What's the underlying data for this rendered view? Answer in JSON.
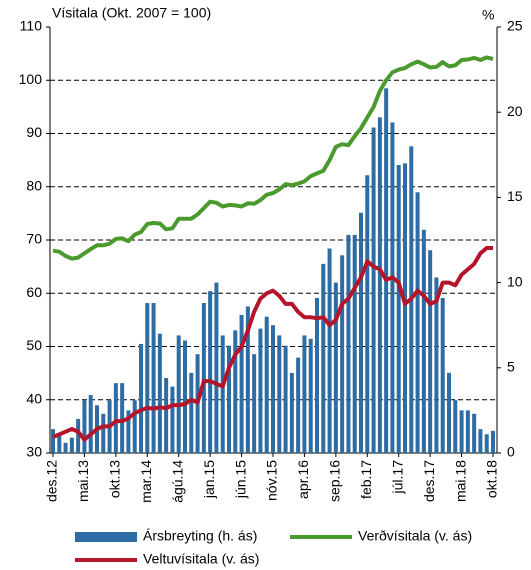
{
  "chart_data": {
    "type": "combo",
    "title": "Vísitala (Okt. 2007 = 100)",
    "y2_title": "%",
    "categories": [
      "des.12",
      null,
      null,
      null,
      null,
      "mai.13",
      null,
      null,
      null,
      null,
      "okt.13",
      null,
      null,
      null,
      null,
      "mar.14",
      null,
      null,
      null,
      null,
      "ágú.14",
      null,
      null,
      null,
      null,
      "jan.15",
      null,
      null,
      null,
      null,
      "jún.15",
      null,
      null,
      null,
      null,
      "nóv.15",
      null,
      null,
      null,
      null,
      "apr.16",
      null,
      null,
      null,
      null,
      "sep.16",
      null,
      null,
      null,
      null,
      "feb.17",
      null,
      null,
      null,
      null,
      "júl.17",
      null,
      null,
      null,
      null,
      "des.17",
      null,
      null,
      null,
      null,
      "mai.18",
      null,
      null,
      null,
      null,
      "okt.18"
    ],
    "ylim": [
      30,
      110
    ],
    "yticks": [
      30,
      40,
      50,
      60,
      70,
      80,
      90,
      100,
      110
    ],
    "y2lim": [
      0,
      25
    ],
    "y2ticks": [
      0,
      5,
      10,
      15,
      20,
      25
    ],
    "grid": true,
    "series": [
      {
        "name": "Ársbreyting (h. ás)",
        "type": "bar",
        "axis": "y2",
        "color": "#2e6ca4",
        "values": [
          1.4,
          1.1,
          0.6,
          0.9,
          2.0,
          3.1,
          3.4,
          2.8,
          2.3,
          3.1,
          4.1,
          4.1,
          2.5,
          3.1,
          6.4,
          8.8,
          8.8,
          7.0,
          4.4,
          3.9,
          6.9,
          6.6,
          4.7,
          5.8,
          8.8,
          9.5,
          10.0,
          6.9,
          6.3,
          7.2,
          8.1,
          8.6,
          5.8,
          7.3,
          8.0,
          7.5,
          6.9,
          6.3,
          4.7,
          5.6,
          6.9,
          6.7,
          9.1,
          11.1,
          12.0,
          10.0,
          11.6,
          12.8,
          12.8,
          14.1,
          16.3,
          19.1,
          19.7,
          21.4,
          19.4,
          16.9,
          17.0,
          18.0,
          15.3,
          13.1,
          11.9,
          10.3,
          9.1,
          4.7,
          3.1,
          2.5,
          2.5,
          2.3,
          1.4,
          1.1,
          1.3
        ]
      },
      {
        "name": "Verðvísitala (v. ás)",
        "type": "line",
        "color": "#4a9a2e",
        "values": [
          68,
          67.8,
          67,
          66.5,
          66.7,
          67.5,
          68.3,
          69,
          69,
          69.3,
          70.2,
          70.3,
          69.8,
          71,
          71.5,
          73,
          73.2,
          73.1,
          72,
          72.2,
          74,
          74,
          74,
          74.8,
          76,
          77.2,
          77,
          76.3,
          76.6,
          76.5,
          76.3,
          76.9,
          76.8,
          77.5,
          78.5,
          78.8,
          79.5,
          80.5,
          80.3,
          80.6,
          81,
          82,
          82.5,
          83,
          85,
          87.5,
          88,
          87.8,
          89.5,
          91,
          93,
          95,
          98,
          100,
          101.5,
          102,
          102.3,
          103,
          103.5,
          103,
          102.4,
          102.5,
          103.4,
          102.6,
          102.8,
          103.8,
          103.9,
          104.2,
          103.8,
          104.3,
          104
        ]
      },
      {
        "name": "Veltuvísitala (v. ás)",
        "type": "line",
        "color": "#b5152b",
        "values": [
          33,
          33.5,
          34,
          34.5,
          34,
          32.5,
          33.5,
          34.5,
          35,
          35,
          36,
          36,
          36.5,
          37.5,
          38,
          38.5,
          38.3,
          38.6,
          38.4,
          39,
          39,
          39.2,
          40,
          39.5,
          43.5,
          43.5,
          43,
          42.5,
          46,
          48.5,
          50,
          53,
          56.5,
          59,
          60,
          60.5,
          59.5,
          58,
          58,
          56.5,
          55.5,
          55.5,
          55.3,
          55.5,
          54,
          55,
          58,
          59,
          61,
          63,
          66,
          65,
          64.5,
          62.5,
          63,
          62,
          58,
          59,
          60.5,
          59.5,
          58,
          58.5,
          62,
          62,
          61.5,
          63.5,
          64.5,
          65.5,
          67.5,
          68.5,
          68.5
        ]
      }
    ]
  }
}
